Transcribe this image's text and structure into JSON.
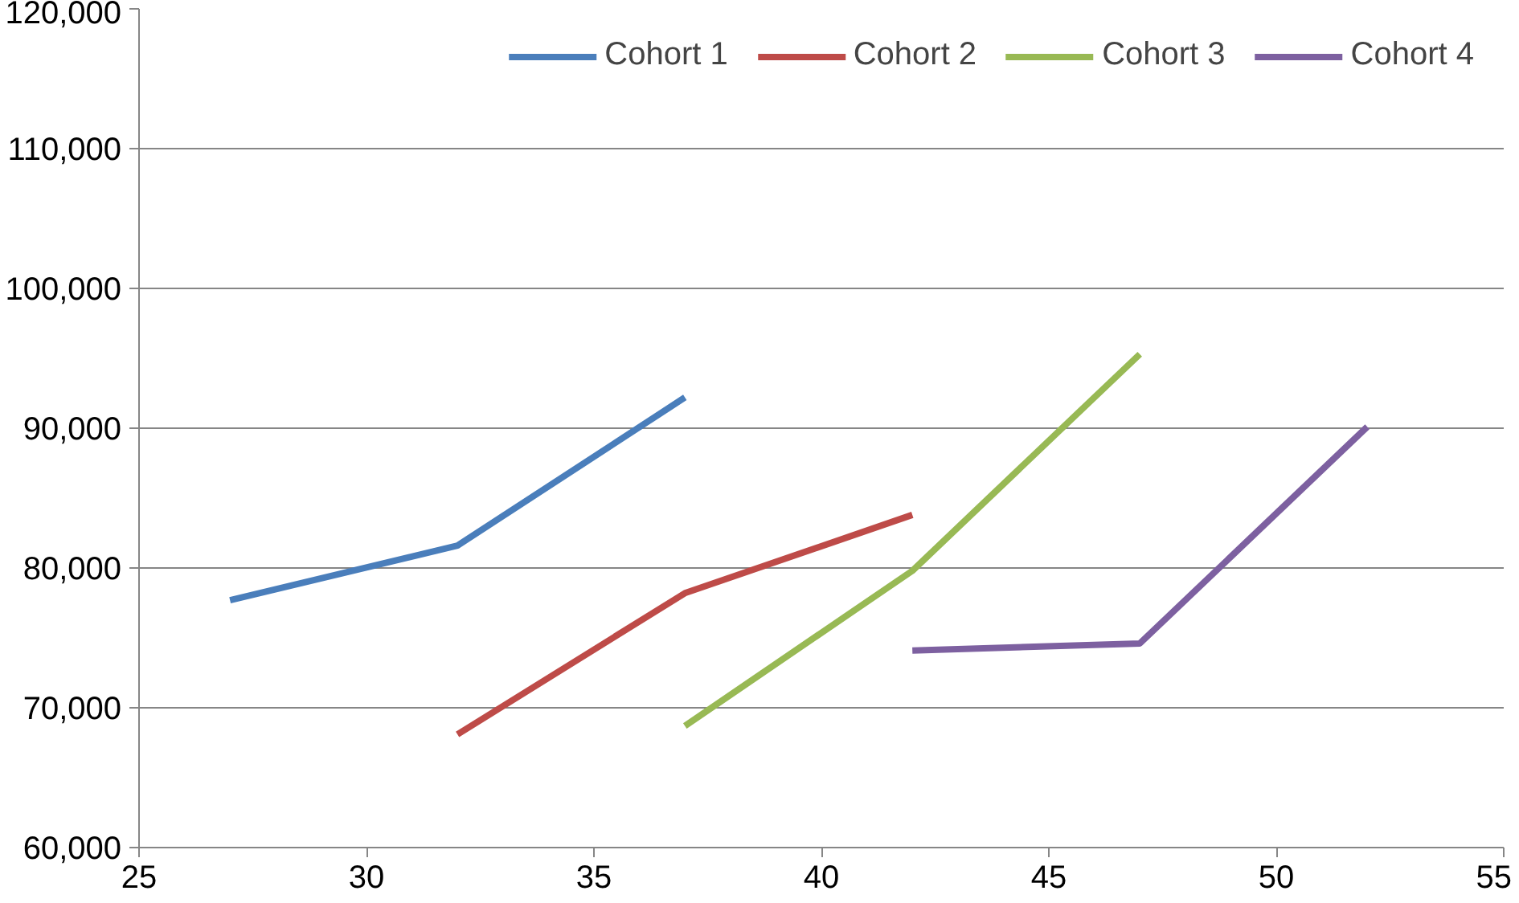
{
  "chart_data": {
    "type": "line",
    "xlim": [
      25,
      55
    ],
    "xticks": [
      25,
      30,
      35,
      40,
      45,
      50,
      55
    ],
    "ylim": [
      60000,
      120000
    ],
    "yticks": [
      {
        "value": 60000,
        "label": "60,000"
      },
      {
        "value": 70000,
        "label": "70,000"
      },
      {
        "value": 80000,
        "label": "80,000"
      },
      {
        "value": 90000,
        "label": "90,000"
      },
      {
        "value": 100000,
        "label": "100,000"
      },
      {
        "value": 110000,
        "label": "110,000"
      },
      {
        "value": 120000,
        "label": "120,000"
      }
    ],
    "grid": "y",
    "legend": "top",
    "line_style": "solid",
    "series": [
      {
        "name": "Cohort 1",
        "color": "#4a7ebb",
        "x": [
          27,
          32,
          37
        ],
        "values": [
          77700,
          81600,
          92200
        ]
      },
      {
        "name": "Cohort 2",
        "color": "#be4b48",
        "x": [
          32,
          37,
          42
        ],
        "values": [
          68100,
          78200,
          83800
        ]
      },
      {
        "name": "Cohort 3",
        "color": "#98b954",
        "x": [
          37,
          42,
          47
        ],
        "values": [
          68700,
          79800,
          95300
        ]
      },
      {
        "name": "Cohort 4",
        "color": "#7d60a0",
        "x": [
          42,
          47,
          52
        ],
        "values": [
          74100,
          74600,
          90100
        ]
      }
    ]
  }
}
